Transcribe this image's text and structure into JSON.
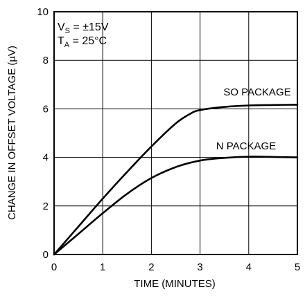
{
  "chart_data": {
    "type": "line",
    "title": "",
    "xlabel": "TIME (MINUTES)",
    "ylabel": "CHANGE IN OFFSET VOLTAGE (µV)",
    "xlim": [
      0,
      5
    ],
    "ylim": [
      0,
      10
    ],
    "x_ticks": [
      "0",
      "1",
      "2",
      "3",
      "4",
      "5"
    ],
    "y_ticks": [
      "0",
      "2",
      "4",
      "6",
      "8",
      "10"
    ],
    "grid": true,
    "conditions": {
      "vs_main": "V",
      "vs_sub": "S",
      "vs_rest": " = ±15V",
      "ta_main": "T",
      "ta_sub": "A",
      "ta_rest": " = 25°C"
    },
    "series": [
      {
        "name": "SO PACKAGE",
        "x": [
          0,
          0.5,
          1,
          1.5,
          2,
          2.5,
          2.8,
          3,
          3.5,
          4,
          4.5,
          5
        ],
        "y": [
          0,
          1.15,
          2.3,
          3.4,
          4.45,
          5.4,
          5.8,
          5.95,
          6.08,
          6.14,
          6.16,
          6.17
        ]
      },
      {
        "name": "N PACKAGE",
        "x": [
          0,
          0.5,
          1,
          1.5,
          2,
          2.5,
          3,
          3.5,
          4,
          4.5,
          5
        ],
        "y": [
          0,
          0.85,
          1.7,
          2.5,
          3.15,
          3.6,
          3.87,
          3.98,
          4.03,
          4.02,
          4.0
        ]
      }
    ]
  },
  "colors": {
    "line": "#000000",
    "grid": "#000000"
  }
}
